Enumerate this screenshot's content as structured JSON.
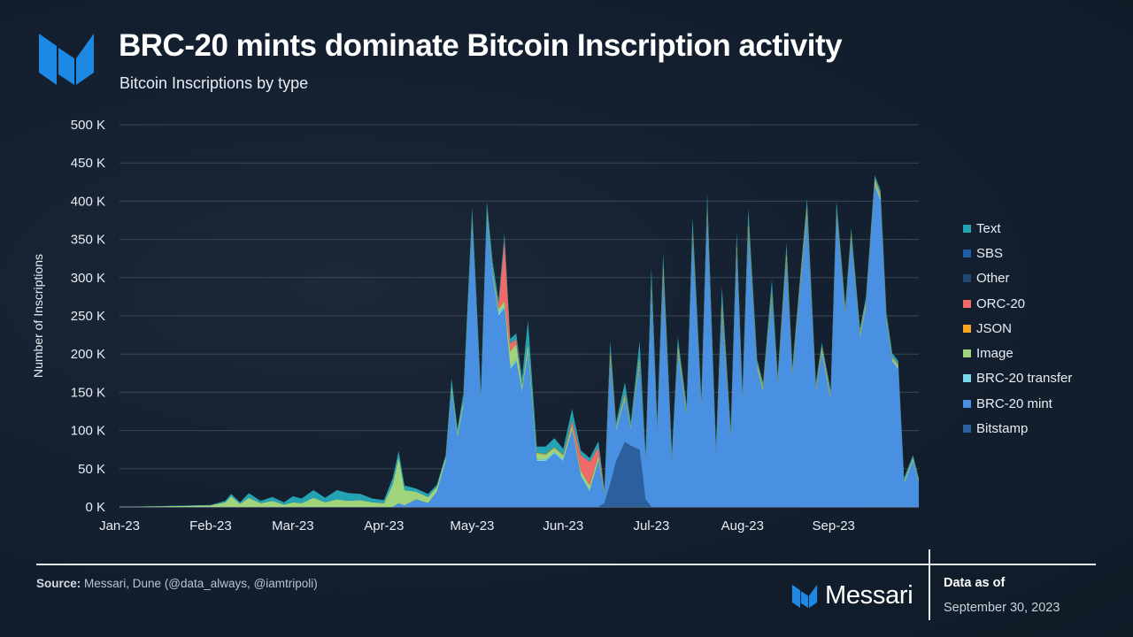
{
  "header": {
    "title": "BRC-20 mints dominate Bitcoin Inscription activity",
    "subtitle": "Bitcoin Inscriptions by type"
  },
  "colors": {
    "background": "#132030",
    "accent_blue": "#1e88e5",
    "grid": "#3a4755",
    "text": "#ffffff"
  },
  "icons": {
    "logo": "messari-logo-icon"
  },
  "footer": {
    "source_label": "Source:",
    "source_text": "Messari, Dune (@data_always, @iamtripoli)",
    "brand": "Messari",
    "data_as_of_label": "Data as of",
    "data_as_of_date": "September 30, 2023"
  },
  "chart_data": {
    "type": "area",
    "stacked": true,
    "title": "BRC-20 mints dominate Bitcoin Inscription activity",
    "subtitle": "Bitcoin Inscriptions by type",
    "xlabel": "",
    "ylabel": "Number of Inscriptions",
    "ylim": [
      0,
      500000
    ],
    "yticks": [
      0,
      50000,
      100000,
      150000,
      200000,
      250000,
      300000,
      350000,
      400000,
      450000,
      500000
    ],
    "ytick_labels": [
      "0 K",
      "50 K",
      "100 K",
      "150 K",
      "200 K",
      "250 K",
      "300 K",
      "350 K",
      "400 K",
      "450 K",
      "500 K"
    ],
    "x_range": [
      "2023-01-01",
      "2023-09-30"
    ],
    "xticks": [
      "2023-01-01",
      "2023-02-01",
      "2023-03-01",
      "2023-04-01",
      "2023-05-01",
      "2023-06-01",
      "2023-07-01",
      "2023-08-01",
      "2023-09-01"
    ],
    "xtick_labels": [
      "Jan-23",
      "Feb-23",
      "Mar-23",
      "Apr-23",
      "May-23",
      "Jun-23",
      "Jul-23",
      "Aug-23",
      "Sep-23"
    ],
    "grid": true,
    "legend_position": "right",
    "x": [
      "2023-01-01",
      "2023-02-01",
      "2023-02-06",
      "2023-02-08",
      "2023-02-11",
      "2023-02-14",
      "2023-02-18",
      "2023-02-22",
      "2023-02-26",
      "2023-03-01",
      "2023-03-04",
      "2023-03-08",
      "2023-03-12",
      "2023-03-16",
      "2023-03-20",
      "2023-03-24",
      "2023-03-28",
      "2023-04-01",
      "2023-04-04",
      "2023-04-06",
      "2023-04-08",
      "2023-04-12",
      "2023-04-16",
      "2023-04-19",
      "2023-04-22",
      "2023-04-24",
      "2023-04-26",
      "2023-04-28",
      "2023-05-01",
      "2023-05-04",
      "2023-05-06",
      "2023-05-08",
      "2023-05-10",
      "2023-05-12",
      "2023-05-14",
      "2023-05-16",
      "2023-05-18",
      "2023-05-20",
      "2023-05-23",
      "2023-05-26",
      "2023-05-29",
      "2023-06-01",
      "2023-06-04",
      "2023-06-07",
      "2023-06-10",
      "2023-06-13",
      "2023-06-15",
      "2023-06-17",
      "2023-06-19",
      "2023-06-22",
      "2023-06-24",
      "2023-06-27",
      "2023-06-29",
      "2023-07-01",
      "2023-07-03",
      "2023-07-05",
      "2023-07-08",
      "2023-07-10",
      "2023-07-13",
      "2023-07-15",
      "2023-07-18",
      "2023-07-20",
      "2023-07-23",
      "2023-07-25",
      "2023-07-28",
      "2023-07-30",
      "2023-08-01",
      "2023-08-03",
      "2023-08-06",
      "2023-08-08",
      "2023-08-11",
      "2023-08-13",
      "2023-08-16",
      "2023-08-18",
      "2023-08-21",
      "2023-08-23",
      "2023-08-26",
      "2023-08-28",
      "2023-08-31",
      "2023-09-02",
      "2023-09-05",
      "2023-09-07",
      "2023-09-10",
      "2023-09-12",
      "2023-09-15",
      "2023-09-17",
      "2023-09-19",
      "2023-09-21",
      "2023-09-23",
      "2023-09-25",
      "2023-09-28",
      "2023-09-30"
    ],
    "series": [
      {
        "name": "Bitstamp",
        "color": "#2b5f9e",
        "values": [
          0,
          0,
          0,
          0,
          0,
          0,
          0,
          0,
          0,
          0,
          0,
          0,
          0,
          0,
          0,
          0,
          0,
          0,
          0,
          0,
          0,
          0,
          0,
          0,
          0,
          0,
          0,
          0,
          0,
          0,
          0,
          0,
          0,
          0,
          0,
          0,
          0,
          0,
          0,
          0,
          0,
          0,
          0,
          0,
          0,
          0,
          5000,
          30000,
          60000,
          85000,
          80000,
          75000,
          10000,
          0,
          0,
          0,
          0,
          0,
          0,
          0,
          0,
          0,
          0,
          0,
          0,
          0,
          0,
          0,
          0,
          0,
          0,
          0,
          0,
          0,
          0,
          0,
          0,
          0,
          0,
          0,
          0,
          0,
          0,
          0,
          0,
          0,
          0,
          0,
          0,
          0,
          0,
          0
        ]
      },
      {
        "name": "BRC-20 mint",
        "color": "#4a90e2",
        "values": [
          0,
          0,
          0,
          0,
          0,
          0,
          0,
          0,
          0,
          0,
          0,
          0,
          0,
          0,
          0,
          0,
          0,
          0,
          0,
          5000,
          2000,
          10000,
          5000,
          20000,
          60000,
          150000,
          90000,
          130000,
          370000,
          140000,
          380000,
          300000,
          250000,
          260000,
          180000,
          190000,
          150000,
          200000,
          60000,
          60000,
          70000,
          60000,
          100000,
          40000,
          20000,
          60000,
          10000,
          160000,
          40000,
          55000,
          20000,
          110000,
          50000,
          280000,
          100000,
          300000,
          60000,
          200000,
          120000,
          350000,
          130000,
          380000,
          70000,
          250000,
          90000,
          330000,
          140000,
          360000,
          180000,
          150000,
          270000,
          160000,
          320000,
          170000,
          300000,
          380000,
          150000,
          200000,
          140000,
          380000,
          250000,
          350000,
          220000,
          260000,
          420000,
          400000,
          240000,
          190000,
          180000,
          30000,
          60000,
          30000
        ]
      },
      {
        "name": "BRC-20 transfer",
        "color": "#76d7ea",
        "values": [
          0,
          0,
          0,
          0,
          0,
          0,
          0,
          0,
          0,
          0,
          0,
          0,
          0,
          0,
          0,
          0,
          0,
          0,
          0,
          0,
          0,
          0,
          0,
          0,
          0,
          2000,
          2000,
          3000,
          5000,
          2000,
          3000,
          4000,
          4000,
          3000,
          3000,
          3000,
          3000,
          3000,
          2000,
          2000,
          2000,
          2000,
          2000,
          2000,
          2000,
          2000,
          2000,
          3000,
          2000,
          2000,
          2000,
          3000,
          2000,
          3000,
          2000,
          3000,
          2000,
          3000,
          2000,
          3000,
          2000,
          3000,
          2000,
          3000,
          2000,
          3000,
          2000,
          3000,
          2000,
          2000,
          3000,
          2000,
          3000,
          2000,
          3000,
          3000,
          2000,
          3000,
          2000,
          3000,
          3000,
          3000,
          3000,
          3000,
          3000,
          3000,
          3000,
          2000,
          2000,
          2000,
          2000,
          2000
        ]
      },
      {
        "name": "Image",
        "color": "#9fd47c",
        "values": [
          0,
          2000,
          6000,
          14000,
          4000,
          12000,
          5000,
          8000,
          3000,
          6000,
          5000,
          12000,
          6000,
          10000,
          8000,
          9000,
          6000,
          5000,
          30000,
          60000,
          20000,
          10000,
          8000,
          6000,
          5000,
          6000,
          5000,
          6000,
          6000,
          4000,
          6000,
          5000,
          5000,
          6000,
          20000,
          20000,
          5000,
          10000,
          8000,
          6000,
          5000,
          5000,
          5000,
          5000,
          6000,
          5000,
          3000,
          4000,
          3000,
          3000,
          3000,
          4000,
          3000,
          4000,
          3000,
          4000,
          3000,
          4000,
          3000,
          4000,
          3000,
          4000,
          3000,
          4000,
          3000,
          4000,
          3000,
          4000,
          3000,
          3000,
          4000,
          3000,
          4000,
          3000,
          4000,
          4000,
          3000,
          3000,
          3000,
          3000,
          3000,
          3000,
          3000,
          3000,
          3000,
          3000,
          3000,
          2000,
          2000,
          2000,
          2000,
          2000
        ]
      },
      {
        "name": "JSON",
        "color": "#f5a623",
        "values": [
          0,
          0,
          0,
          0,
          0,
          0,
          0,
          0,
          0,
          0,
          0,
          0,
          0,
          0,
          0,
          0,
          0,
          0,
          0,
          0,
          0,
          0,
          0,
          0,
          0,
          500,
          500,
          500,
          1000,
          500,
          1000,
          1000,
          1000,
          1000,
          1000,
          1000,
          1000,
          1000,
          1000,
          1000,
          1000,
          1000,
          1000,
          1000,
          1000,
          1000,
          1000,
          8000,
          1000,
          3000,
          1000,
          5000,
          1000,
          6000,
          2000,
          10000,
          2000,
          5000,
          3000,
          6000,
          4000,
          8000,
          2000,
          10000,
          3000,
          8000,
          2000,
          8000,
          3000,
          3000,
          5000,
          3000,
          8000,
          4000,
          6000,
          6000,
          3000,
          4000,
          3000,
          4000,
          3000,
          4000,
          3000,
          3000,
          3000,
          3000,
          3000,
          2000,
          2000,
          1000,
          1000,
          1000
        ]
      },
      {
        "name": "ORC-20",
        "color": "#f06a6a",
        "values": [
          0,
          0,
          0,
          0,
          0,
          0,
          0,
          0,
          0,
          0,
          0,
          0,
          0,
          0,
          0,
          0,
          0,
          0,
          0,
          0,
          0,
          0,
          0,
          0,
          0,
          0,
          0,
          0,
          0,
          0,
          0,
          0,
          5000,
          80000,
          10000,
          5000,
          0,
          0,
          0,
          0,
          0,
          0,
          5000,
          20000,
          30000,
          10000,
          0,
          0,
          0,
          0,
          0,
          0,
          0,
          0,
          0,
          0,
          0,
          0,
          0,
          0,
          0,
          0,
          0,
          0,
          0,
          0,
          0,
          0,
          0,
          0,
          0,
          0,
          0,
          0,
          0,
          0,
          0,
          0,
          0,
          0,
          0,
          0,
          0,
          0,
          0,
          0,
          0,
          0,
          0,
          0,
          0,
          0
        ]
      },
      {
        "name": "Other",
        "color": "#1f4870",
        "values": [
          0,
          0,
          0,
          0,
          0,
          0,
          0,
          0,
          0,
          0,
          0,
          0,
          0,
          0,
          0,
          0,
          0,
          0,
          0,
          0,
          0,
          0,
          0,
          0,
          0,
          0,
          0,
          0,
          0,
          0,
          0,
          0,
          0,
          0,
          0,
          0,
          0,
          0,
          0,
          0,
          0,
          0,
          0,
          0,
          0,
          0,
          0,
          0,
          0,
          0,
          0,
          0,
          0,
          0,
          0,
          0,
          0,
          0,
          0,
          0,
          0,
          0,
          0,
          0,
          0,
          0,
          0,
          0,
          0,
          0,
          0,
          0,
          0,
          0,
          0,
          0,
          0,
          0,
          0,
          0,
          0,
          0,
          0,
          0,
          0,
          0,
          0,
          0,
          0,
          0,
          0,
          0
        ]
      },
      {
        "name": "SBS",
        "color": "#1e5fa8",
        "values": [
          0,
          0,
          0,
          0,
          0,
          0,
          0,
          0,
          0,
          0,
          0,
          0,
          0,
          0,
          0,
          0,
          0,
          0,
          0,
          0,
          0,
          0,
          0,
          0,
          0,
          0,
          0,
          0,
          0,
          0,
          0,
          0,
          0,
          0,
          0,
          0,
          0,
          0,
          0,
          0,
          0,
          0,
          0,
          0,
          0,
          0,
          0,
          0,
          0,
          0,
          0,
          0,
          0,
          0,
          0,
          0,
          0,
          0,
          0,
          0,
          0,
          0,
          0,
          0,
          0,
          0,
          0,
          0,
          0,
          0,
          0,
          0,
          0,
          0,
          0,
          0,
          0,
          0,
          0,
          0,
          0,
          0,
          0,
          0,
          0,
          0,
          0,
          0,
          0,
          0,
          0,
          0
        ]
      },
      {
        "name": "Text",
        "color": "#24a3b5",
        "values": [
          0,
          500,
          2000,
          3000,
          2000,
          6000,
          3000,
          5000,
          3000,
          8000,
          6000,
          10000,
          6000,
          12000,
          10000,
          8000,
          5000,
          4000,
          8000,
          8000,
          6000,
          4000,
          4000,
          3000,
          3000,
          10000,
          5000,
          8000,
          10000,
          5000,
          10000,
          10000,
          6000,
          8000,
          6000,
          8000,
          10000,
          30000,
          8000,
          10000,
          12000,
          8000,
          15000,
          6000,
          5000,
          8000,
          3000,
          12000,
          5000,
          15000,
          5000,
          20000,
          5000,
          20000,
          5000,
          15000,
          5000,
          10000,
          5000,
          15000,
          5000,
          15000,
          5000,
          20000,
          5000,
          15000,
          5000,
          15000,
          5000,
          5000,
          15000,
          5000,
          10000,
          5000,
          5000,
          10000,
          5000,
          5000,
          5000,
          10000,
          5000,
          5000,
          5000,
          5000,
          5000,
          5000,
          5000,
          5000,
          5000,
          3000,
          3000,
          3000
        ]
      }
    ]
  },
  "legend": {
    "items": [
      {
        "label": "Text",
        "color": "#24a3b5"
      },
      {
        "label": "SBS",
        "color": "#1e5fa8"
      },
      {
        "label": "Other",
        "color": "#1f4870"
      },
      {
        "label": "ORC-20",
        "color": "#f06a6a"
      },
      {
        "label": "JSON",
        "color": "#f5a623"
      },
      {
        "label": "Image",
        "color": "#9fd47c"
      },
      {
        "label": "BRC-20 transfer",
        "color": "#76d7ea"
      },
      {
        "label": "BRC-20 mint",
        "color": "#4a90e2"
      },
      {
        "label": "Bitstamp",
        "color": "#2b5f9e"
      }
    ]
  }
}
